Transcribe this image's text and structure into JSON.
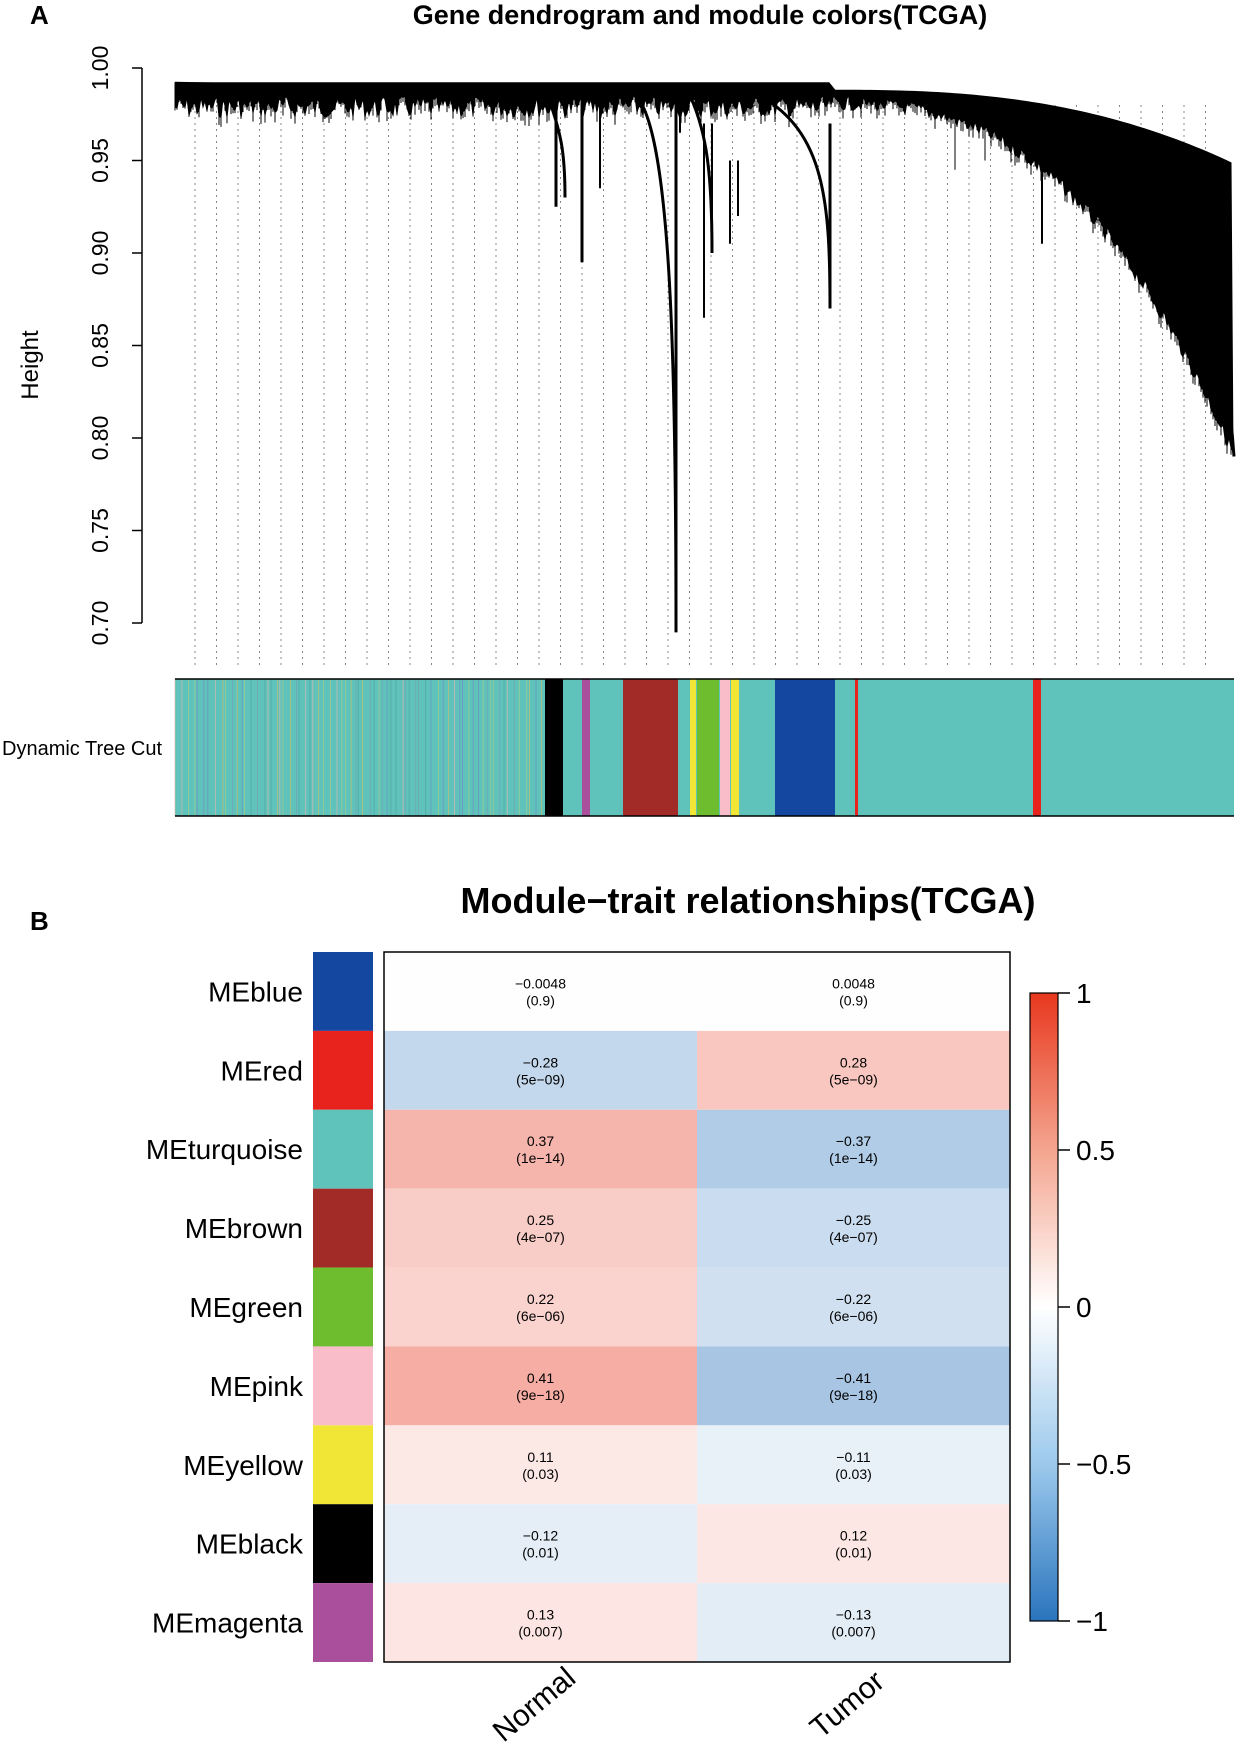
{
  "panel_a": {
    "label": "A",
    "title": "Gene dendrogram and module colors(TCGA)",
    "ylabel": "Height",
    "strip_label": "Dynamic Tree Cut",
    "y_ticks": [
      "0.70",
      "0.75",
      "0.80",
      "0.85",
      "0.90",
      "0.95",
      "1.00"
    ]
  },
  "panel_b": {
    "label": "B",
    "title": "Module−trait relationships(TCGA)"
  },
  "chart_data": [
    {
      "type": "dendrogram",
      "title": "Gene dendrogram and module colors(TCGA)",
      "ylabel": "Height",
      "ylim": [
        0.7,
        1.0
      ],
      "y_ticks": [
        0.7,
        0.75,
        0.8,
        0.85,
        0.9,
        0.95,
        1.0
      ],
      "color_strip_label": "Dynamic Tree Cut",
      "module_color_order": [
        "turquoise",
        "black",
        "magenta",
        "turquoise",
        "brown",
        "yellow",
        "green",
        "pink",
        "turquoise",
        "blue",
        "turquoise",
        "red",
        "turquoise"
      ],
      "colors": {
        "turquoise": "#5fc3bb",
        "black": "#000000",
        "magenta": "#a94f9c",
        "brown": "#a22a27",
        "yellow": "#f1e635",
        "green": "#6ebd2f",
        "pink": "#f9bcc9",
        "blue": "#1447a0",
        "red": "#e8231e"
      }
    },
    {
      "type": "heatmap",
      "title": "Module−trait relationships(TCGA)",
      "columns": [
        "Normal",
        "Tumor"
      ],
      "rows": [
        {
          "module": "MEblue",
          "color": "#1447a0",
          "values": [
            "−0.0048",
            "0.0048"
          ],
          "pvalues": [
            "(0.9)",
            "(0.9)"
          ],
          "numeric": [
            -0.0048,
            0.0048
          ]
        },
        {
          "module": "MEred",
          "color": "#e8231e",
          "values": [
            "−0.28",
            "0.28"
          ],
          "pvalues": [
            "(5e−09)",
            "(5e−09)"
          ],
          "numeric": [
            -0.28,
            0.28
          ]
        },
        {
          "module": "MEturquoise",
          "color": "#5fc3bb",
          "values": [
            "0.37",
            "−0.37"
          ],
          "pvalues": [
            "(1e−14)",
            "(1e−14)"
          ],
          "numeric": [
            0.37,
            -0.37
          ]
        },
        {
          "module": "MEbrown",
          "color": "#a22a27",
          "values": [
            "0.25",
            "−0.25"
          ],
          "pvalues": [
            "(4e−07)",
            "(4e−07)"
          ],
          "numeric": [
            0.25,
            -0.25
          ]
        },
        {
          "module": "MEgreen",
          "color": "#6ebd2f",
          "values": [
            "0.22",
            "−0.22"
          ],
          "pvalues": [
            "(6e−06)",
            "(6e−06)"
          ],
          "numeric": [
            0.22,
            -0.22
          ]
        },
        {
          "module": "MEpink",
          "color": "#f9bcc9",
          "values": [
            "0.41",
            "−0.41"
          ],
          "pvalues": [
            "(9e−18)",
            "(9e−18)"
          ],
          "numeric": [
            0.41,
            -0.41
          ]
        },
        {
          "module": "MEyellow",
          "color": "#f1e635",
          "values": [
            "0.11",
            "−0.11"
          ],
          "pvalues": [
            "(0.03)",
            "(0.03)"
          ],
          "numeric": [
            0.11,
            -0.11
          ]
        },
        {
          "module": "MEblack",
          "color": "#000000",
          "values": [
            "−0.12",
            "0.12"
          ],
          "pvalues": [
            "(0.01)",
            "(0.01)"
          ],
          "numeric": [
            -0.12,
            0.12
          ]
        },
        {
          "module": "MEmagenta",
          "color": "#a94f9c",
          "values": [
            "0.13",
            "−0.13"
          ],
          "pvalues": [
            "(0.007)",
            "(0.007)"
          ],
          "numeric": [
            0.13,
            -0.13
          ]
        }
      ],
      "color_scale": {
        "min": -1,
        "max": 1,
        "ticks": [
          "1",
          "0.5",
          "0",
          "−0.5",
          "−1"
        ],
        "tick_values": [
          1,
          0.5,
          0,
          -0.5,
          -1
        ],
        "low": "#2a74bd",
        "mid": "#ffffff",
        "high": "#e8381e"
      }
    }
  ]
}
